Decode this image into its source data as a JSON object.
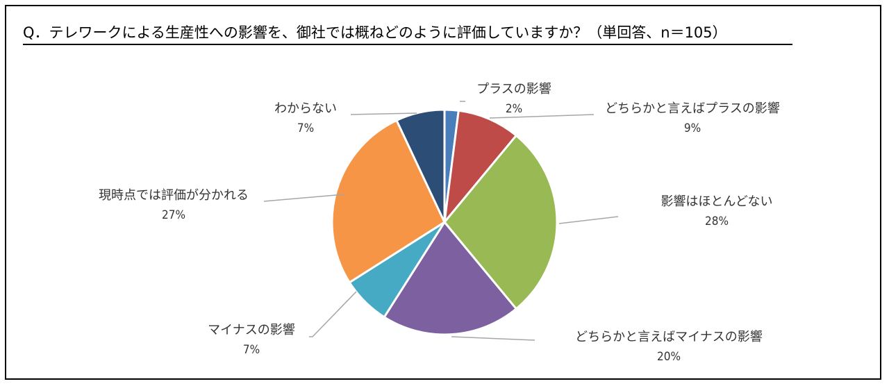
{
  "title": "Q．テレワークによる生産性への影響を、御社では概ねどのように評価していますか？（単回答、n＝105）",
  "chart_data": {
    "type": "pie",
    "title": "Q．テレワークによる生産性への影響を、御社では概ねどのように評価していますか？（単回答、n＝105）",
    "slices": [
      {
        "name": "プラスの影響",
        "value": 2,
        "label": "2%",
        "color": "#4A7EBB"
      },
      {
        "name": "どちらかと言えばプラスの影響",
        "value": 9,
        "label": "9%",
        "color": "#BE4B48"
      },
      {
        "name": "影響はほとんどない",
        "value": 28,
        "label": "28%",
        "color": "#98B954"
      },
      {
        "name": "どちらかと言えばマイナスの影響",
        "value": 20,
        "label": "20%",
        "color": "#7D60A0"
      },
      {
        "name": "マイナスの影響",
        "value": 7,
        "label": "7%",
        "color": "#46AAC5"
      },
      {
        "name": "現時点では評価が分かれる",
        "value": 27,
        "label": "27%",
        "color": "#F69546"
      },
      {
        "name": "わからない",
        "value": 7,
        "label": "7%",
        "color": "#2C4D75"
      }
    ]
  }
}
